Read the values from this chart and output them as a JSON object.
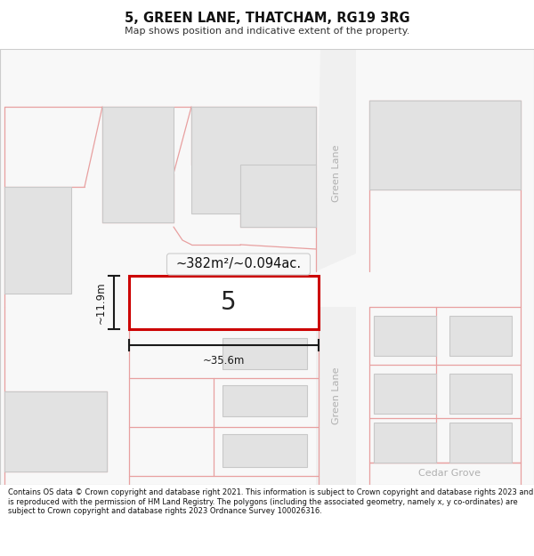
{
  "title": "5, GREEN LANE, THATCHAM, RG19 3RG",
  "subtitle": "Map shows position and indicative extent of the property.",
  "footer": "Contains OS data © Crown copyright and database right 2021. This information is subject to Crown copyright and database rights 2023 and is reproduced with the permission of HM Land Registry. The polygons (including the associated geometry, namely x, y co-ordinates) are subject to Crown copyright and database rights 2023 Ordnance Survey 100026316.",
  "bg_color": "#ffffff",
  "map_bg": "#f7f7f7",
  "building_fill": "#e2e2e2",
  "building_edge": "#c8c8c8",
  "road_line_color": "#e8a0a0",
  "plot_fill": "#ffffff",
  "plot_edge": "#cc0000",
  "dim_color": "#1a1a1a",
  "street_label_color": "#b0b0b0",
  "area_text": "~382m²/~0.094ac.",
  "width_text": "~35.6m",
  "height_text": "~11.9m",
  "plot_number": "5",
  "street_upper": "Green Lane",
  "street_lower": "Green Lane",
  "street_horiz": "Cedar Grove"
}
